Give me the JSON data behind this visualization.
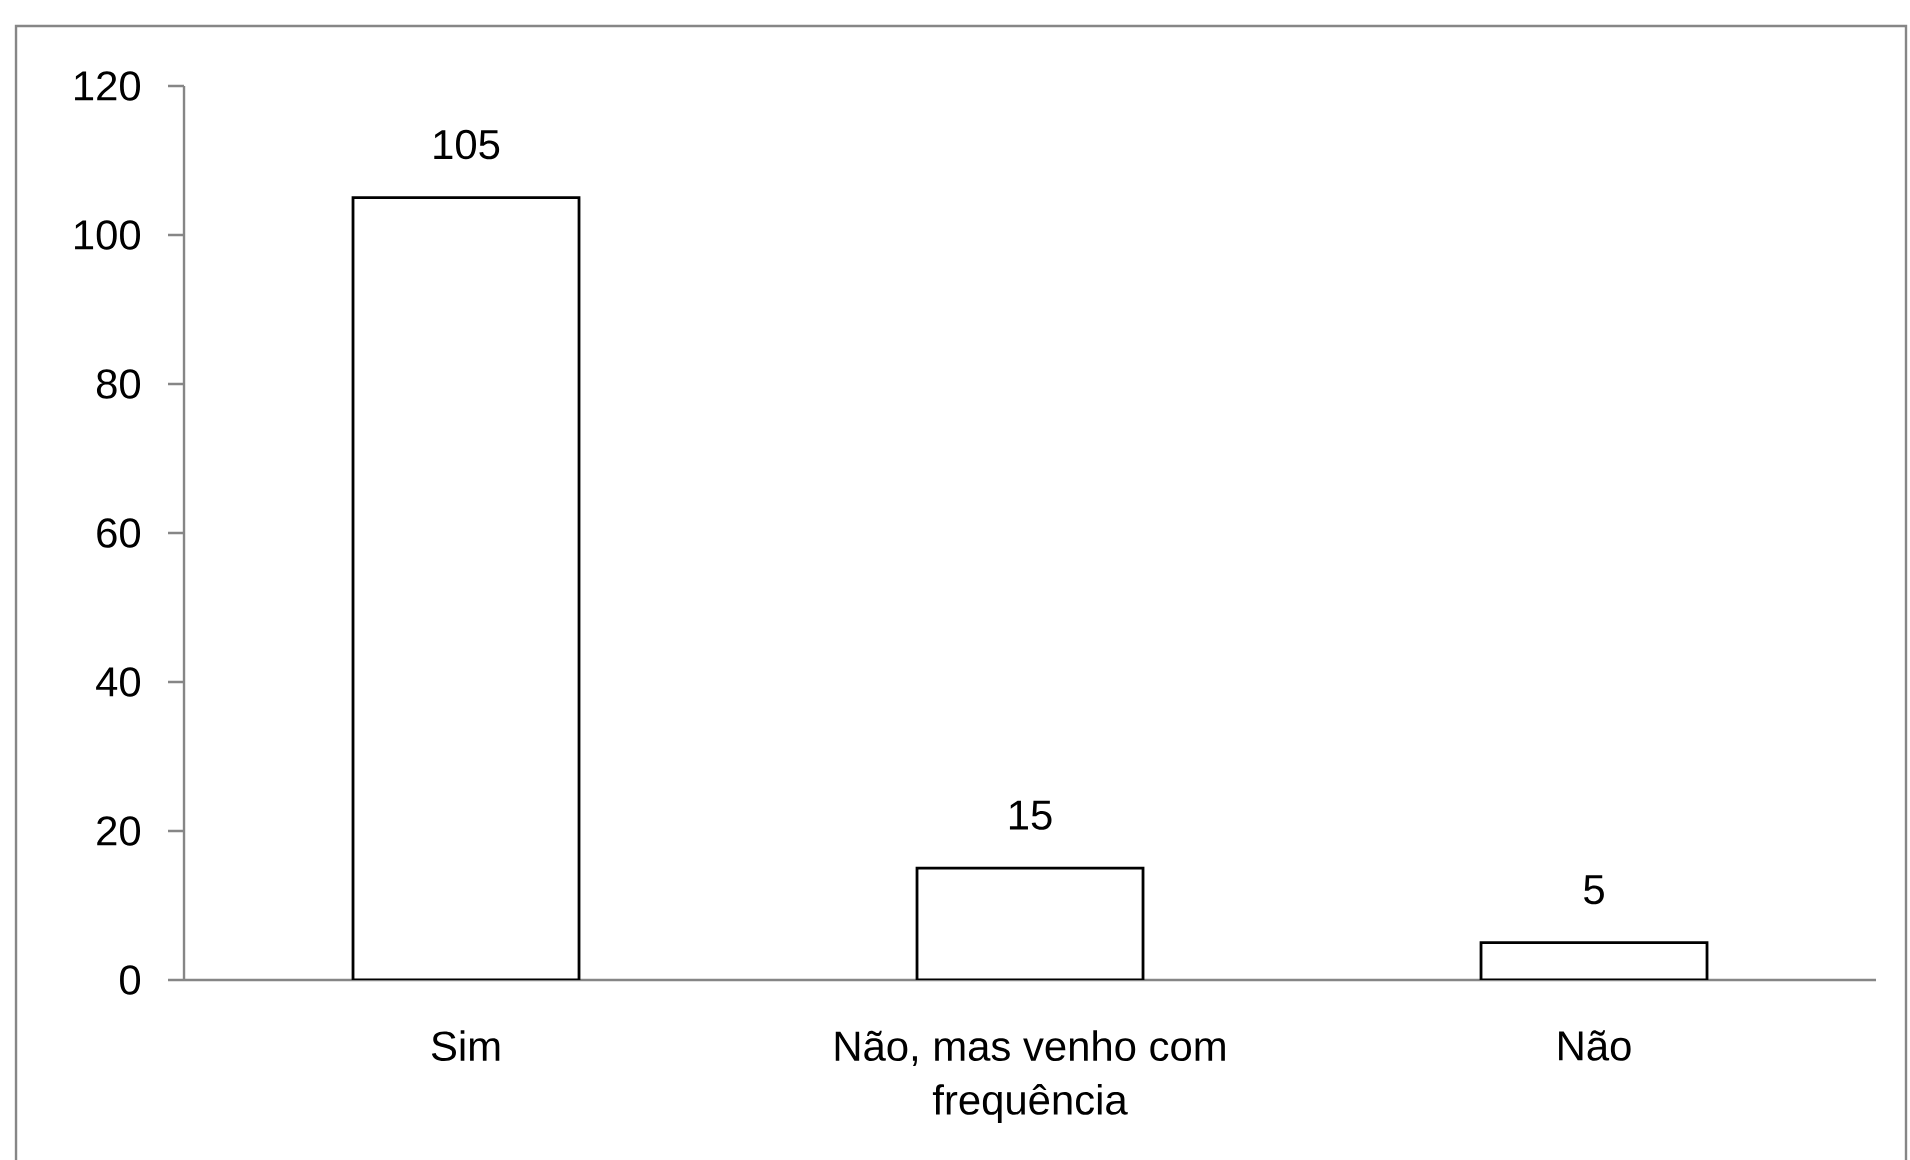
{
  "chart_data": {
    "type": "bar",
    "categories": [
      "Sim",
      "Não, mas venho com frequência",
      "Não"
    ],
    "values": [
      105,
      15,
      5
    ],
    "color": "#ffffff",
    "ylim": [
      0,
      120
    ],
    "yticks": [
      0,
      20,
      40,
      60,
      80,
      100,
      120
    ],
    "data_labels": true
  }
}
